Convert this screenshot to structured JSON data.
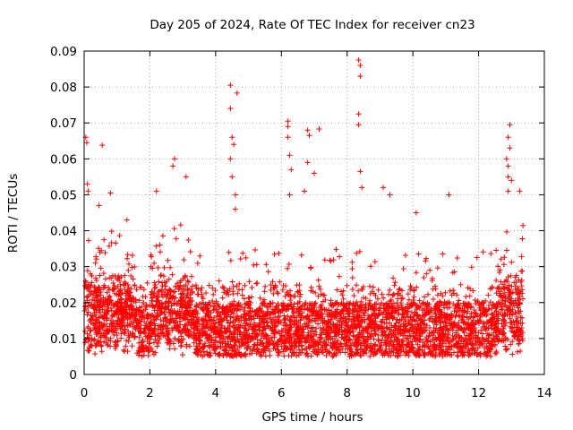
{
  "chart_data": {
    "type": "scatter",
    "title": "Day 205 of 2024, Rate Of TEC Index for receiver cn23",
    "xlabel": "GPS time / hours",
    "ylabel": "ROTI / TECUs",
    "xlim": [
      0,
      14
    ],
    "ylim": [
      0,
      0.09
    ],
    "grid": true,
    "marker": "+",
    "color": "#ff0000",
    "x_ticks": [
      0,
      2,
      4,
      6,
      8,
      10,
      12,
      14
    ],
    "x_tick_labels": [
      "0",
      "2",
      "4",
      "6",
      "8",
      "10",
      "12",
      "14"
    ],
    "y_ticks": [
      0,
      0.01,
      0.02,
      0.03,
      0.04,
      0.05,
      0.06,
      0.07,
      0.08,
      0.09
    ],
    "y_tick_labels": [
      "0",
      "0.01",
      "0.02",
      "0.03",
      "0.04",
      "0.05",
      "0.06",
      "0.07",
      "0.08",
      "0.09"
    ],
    "data_range_hours": [
      0,
      13.35
    ],
    "baseline_band": {
      "low": 0.005,
      "high": 0.02
    },
    "series": [
      {
        "name": "ROTI",
        "highlighted_points": [
          {
            "x": 0.05,
            "y": 0.066
          },
          {
            "x": 0.08,
            "y": 0.0645
          },
          {
            "x": 0.1,
            "y": 0.053
          },
          {
            "x": 0.12,
            "y": 0.051
          },
          {
            "x": 0.55,
            "y": 0.0638
          },
          {
            "x": 0.45,
            "y": 0.047
          },
          {
            "x": 0.8,
            "y": 0.0505
          },
          {
            "x": 1.3,
            "y": 0.043
          },
          {
            "x": 2.2,
            "y": 0.051
          },
          {
            "x": 2.7,
            "y": 0.058
          },
          {
            "x": 2.75,
            "y": 0.06
          },
          {
            "x": 3.1,
            "y": 0.055
          },
          {
            "x": 4.45,
            "y": 0.0805
          },
          {
            "x": 4.45,
            "y": 0.074
          },
          {
            "x": 4.65,
            "y": 0.0783
          },
          {
            "x": 4.5,
            "y": 0.066
          },
          {
            "x": 4.55,
            "y": 0.064
          },
          {
            "x": 4.45,
            "y": 0.06
          },
          {
            "x": 4.5,
            "y": 0.055
          },
          {
            "x": 4.6,
            "y": 0.05
          },
          {
            "x": 4.6,
            "y": 0.046
          },
          {
            "x": 6.2,
            "y": 0.0705
          },
          {
            "x": 6.2,
            "y": 0.069
          },
          {
            "x": 6.2,
            "y": 0.066
          },
          {
            "x": 6.25,
            "y": 0.061
          },
          {
            "x": 6.3,
            "y": 0.057
          },
          {
            "x": 6.25,
            "y": 0.05
          },
          {
            "x": 6.8,
            "y": 0.068
          },
          {
            "x": 6.85,
            "y": 0.0665
          },
          {
            "x": 7.15,
            "y": 0.0683
          },
          {
            "x": 6.8,
            "y": 0.059
          },
          {
            "x": 7.0,
            "y": 0.056
          },
          {
            "x": 6.7,
            "y": 0.051
          },
          {
            "x": 8.35,
            "y": 0.0875
          },
          {
            "x": 8.4,
            "y": 0.086
          },
          {
            "x": 8.4,
            "y": 0.083
          },
          {
            "x": 8.35,
            "y": 0.0725
          },
          {
            "x": 8.35,
            "y": 0.0695
          },
          {
            "x": 8.4,
            "y": 0.0565
          },
          {
            "x": 8.45,
            "y": 0.052
          },
          {
            "x": 9.1,
            "y": 0.052
          },
          {
            "x": 9.3,
            "y": 0.05
          },
          {
            "x": 10.1,
            "y": 0.045
          },
          {
            "x": 11.1,
            "y": 0.05
          },
          {
            "x": 12.95,
            "y": 0.0695
          },
          {
            "x": 12.9,
            "y": 0.066
          },
          {
            "x": 12.95,
            "y": 0.063
          },
          {
            "x": 12.85,
            "y": 0.06
          },
          {
            "x": 12.9,
            "y": 0.058
          },
          {
            "x": 12.9,
            "y": 0.055
          },
          {
            "x": 13.0,
            "y": 0.054
          },
          {
            "x": 12.9,
            "y": 0.051
          },
          {
            "x": 13.25,
            "y": 0.051
          }
        ]
      }
    ]
  }
}
